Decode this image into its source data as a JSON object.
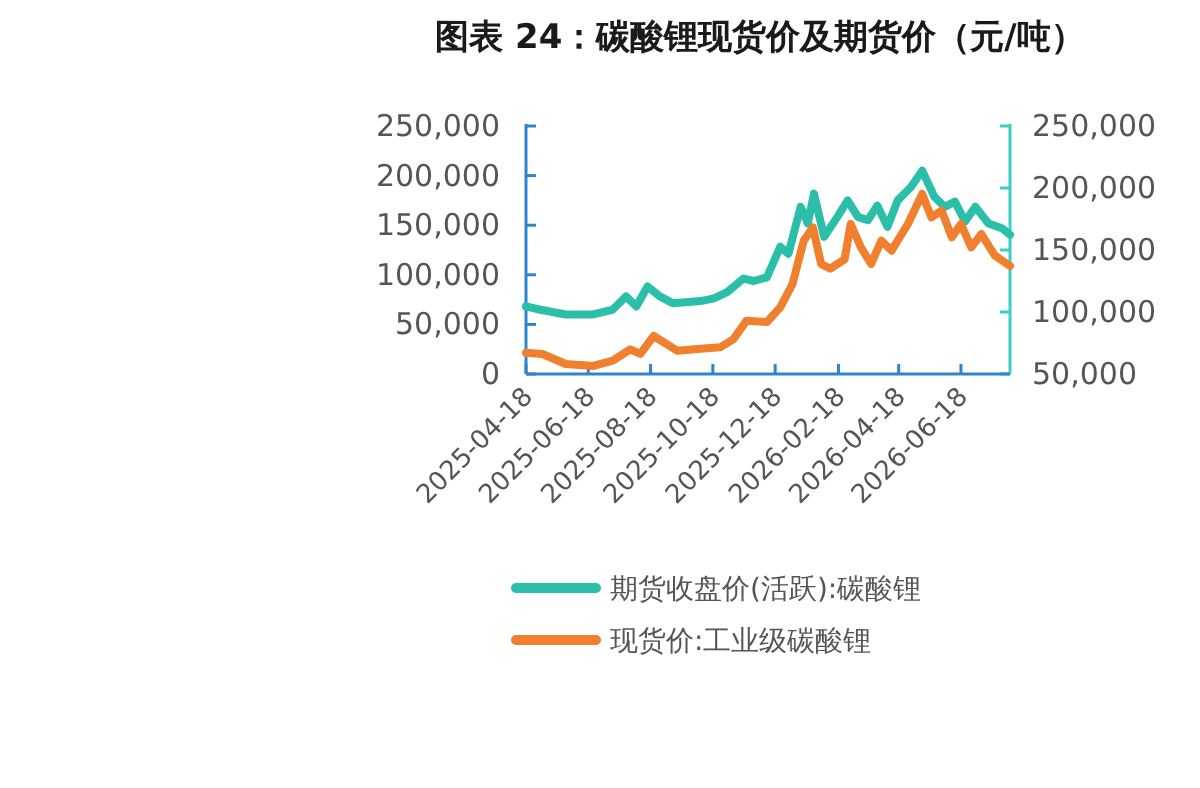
{
  "chart_data": {
    "type": "line",
    "title": "图表 24：碳酸锂现货价及期货价（元/吨）",
    "series": [
      {
        "name": "期货收盘价(活跃):碳酸锂",
        "color": "#2bbfa9",
        "axis": "y2",
        "x": [
          "2025-04-18",
          "2025-05-01",
          "2025-05-27",
          "2025-06-23",
          "2025-07-12",
          "2025-07-25",
          "2025-08-04",
          "2025-08-15",
          "2025-08-27",
          "2025-09-09",
          "2025-10-06",
          "2025-10-19",
          "2025-11-01",
          "2025-11-17",
          "2025-11-27",
          "2025-12-10",
          "2025-12-23",
          "2025-12-31",
          "2026-01-12",
          "2026-01-19",
          "2026-01-25",
          "2026-02-04",
          "2026-02-17",
          "2026-02-27",
          "2026-03-09",
          "2026-03-19",
          "2026-03-28",
          "2026-04-07",
          "2026-04-17",
          "2026-04-30",
          "2026-05-11",
          "2026-05-23",
          "2026-06-02",
          "2026-06-12",
          "2026-06-22",
          "2026-07-02",
          "2026-07-15",
          "2026-07-28",
          "2026-08-05"
        ],
        "values": [
          104500,
          102000,
          98000,
          98000,
          102000,
          112600,
          104500,
          120600,
          112600,
          107000,
          108800,
          111000,
          116000,
          127000,
          125000,
          128000,
          152700,
          147000,
          184800,
          171400,
          195500,
          160700,
          176700,
          190000,
          176700,
          174000,
          185800,
          168700,
          190000,
          200800,
          214000,
          192800,
          184800,
          189000,
          173000,
          184800,
          171400,
          167600,
          162300
        ]
      },
      {
        "name": "现货价:工业级碳酸锂",
        "color": "#f0802e",
        "x": [
          "2025-04-18",
          "2025-05-04",
          "2025-05-27",
          "2025-06-23",
          "2025-07-12",
          "2025-07-29",
          "2025-08-08",
          "2025-08-21",
          "2025-09-13",
          "2025-10-06",
          "2025-10-25",
          "2025-11-07",
          "2025-11-20",
          "2025-12-10",
          "2025-12-23",
          "2026-01-04",
          "2026-01-15",
          "2026-01-24",
          "2026-02-01",
          "2026-02-10",
          "2026-02-24",
          "2026-03-02",
          "2026-03-12",
          "2026-03-22",
          "2026-04-01",
          "2026-04-11",
          "2026-04-27",
          "2026-05-11",
          "2026-05-20",
          "2026-05-30",
          "2026-06-09",
          "2026-06-18",
          "2026-06-28",
          "2026-07-08",
          "2026-07-21",
          "2026-08-05"
        ],
        "values": [
          21500,
          20200,
          10100,
          8100,
          13400,
          24900,
          20200,
          38300,
          23500,
          25500,
          26900,
          34900,
          53800,
          52400,
          67200,
          90700,
          134400,
          147800,
          110900,
          106200,
          115600,
          151200,
          127700,
          110900,
          134400,
          124300,
          151200,
          181500,
          157900,
          164700,
          137800,
          151200,
          127700,
          141100,
          119600,
          108900
        ]
      }
    ],
    "xlim": [
      "2025-04-18",
      "2026-08-05"
    ],
    "xticks": [
      "2025-04-18",
      "2025-06-18",
      "2025-08-18",
      "2025-10-18",
      "2025-12-18",
      "2026-02-18",
      "2026-04-18",
      "2026-06-18"
    ],
    "ylim": [
      0,
      250000
    ],
    "yticks": [
      {
        "value": 0,
        "label": "0"
      },
      {
        "value": 50000,
        "label": "50,000"
      },
      {
        "value": 100000,
        "label": "100,000"
      },
      {
        "value": 150000,
        "label": "150,000"
      },
      {
        "value": 200000,
        "label": "200,000"
      },
      {
        "value": 250000,
        "label": "250,000"
      }
    ],
    "y2lim": [
      50000,
      250000
    ],
    "y2ticks": [
      {
        "value": 50000,
        "label": "50,000"
      },
      {
        "value": 100000,
        "label": "100,000"
      },
      {
        "value": 150000,
        "label": "150,000"
      },
      {
        "value": 200000,
        "label": "200,000"
      },
      {
        "value": 250000,
        "label": "250,000"
      }
    ],
    "legend": "bottom"
  }
}
